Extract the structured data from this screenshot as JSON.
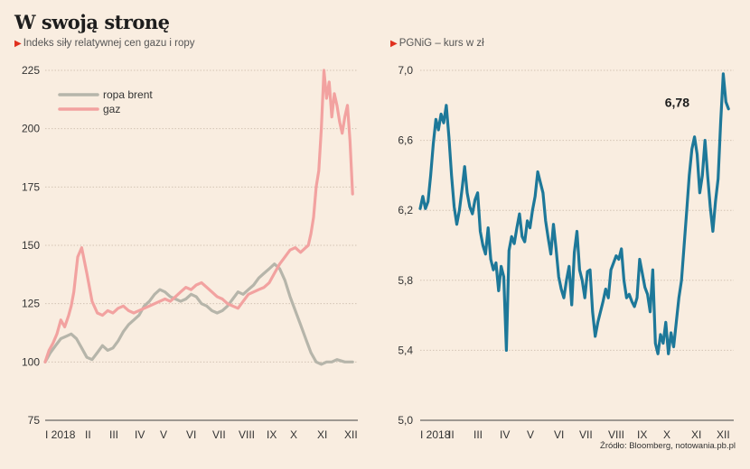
{
  "header": {
    "title": "W swoją stronę",
    "source": "Źródło: Bloomberg, notowania.pb.pl"
  },
  "colors": {
    "brent": "#b6b5aa",
    "gaz": "#f2a2a0",
    "pgnig": "#1d7899",
    "marker": "#e0301e"
  },
  "chart_data": [
    {
      "type": "line",
      "title": "Indeks siły relatywnej cen gazu i ropy",
      "xlabel": "",
      "ylabel": "",
      "x_ticks": [
        "I 2018",
        "II",
        "III",
        "IV",
        "V",
        "VI",
        "VII",
        "VIII",
        "IX",
        "X",
        "XI",
        "XII"
      ],
      "y_ticks": [
        "75",
        "100",
        "125",
        "150",
        "175",
        "200",
        "225"
      ],
      "ylim": [
        75,
        225
      ],
      "xlim": [
        0,
        12
      ],
      "grid": true,
      "legend": "top-left",
      "series": [
        {
          "name": "ropa brent",
          "x": [
            0.0,
            0.2,
            0.4,
            0.6,
            0.8,
            1.0,
            1.2,
            1.4,
            1.6,
            1.8,
            2.0,
            2.2,
            2.4,
            2.6,
            2.8,
            3.0,
            3.2,
            3.4,
            3.6,
            3.8,
            4.0,
            4.2,
            4.4,
            4.6,
            4.8,
            5.0,
            5.2,
            5.4,
            5.6,
            5.8,
            6.0,
            6.2,
            6.4,
            6.6,
            6.8,
            7.0,
            7.2,
            7.4,
            7.6,
            7.8,
            8.0,
            8.2,
            8.4,
            8.6,
            8.8,
            9.0,
            9.2,
            9.4,
            9.6,
            9.8,
            10.0,
            10.2,
            10.4,
            10.6,
            10.8,
            11.0,
            11.2,
            11.5,
            11.8
          ],
          "values": [
            100,
            104,
            107,
            110,
            111,
            112,
            110,
            106,
            102,
            101,
            104,
            107,
            105,
            106,
            109,
            113,
            116,
            118,
            120,
            124,
            126,
            129,
            131,
            130,
            128,
            127,
            126,
            127,
            129,
            128,
            125,
            124,
            122,
            121,
            122,
            124,
            127,
            130,
            129,
            131,
            133,
            136,
            138,
            140,
            142,
            140,
            135,
            128,
            122,
            116,
            110,
            104,
            100,
            99,
            100,
            100,
            101,
            100,
            100
          ]
        },
        {
          "name": "gaz",
          "x": [
            0.0,
            0.15,
            0.3,
            0.45,
            0.6,
            0.75,
            0.9,
            1.0,
            1.1,
            1.25,
            1.4,
            1.6,
            1.8,
            2.0,
            2.2,
            2.4,
            2.6,
            2.8,
            3.0,
            3.2,
            3.4,
            3.6,
            3.8,
            4.0,
            4.2,
            4.4,
            4.6,
            4.8,
            5.0,
            5.2,
            5.4,
            5.6,
            5.8,
            6.0,
            6.2,
            6.4,
            6.6,
            6.8,
            7.0,
            7.2,
            7.4,
            7.6,
            7.8,
            8.0,
            8.2,
            8.4,
            8.6,
            8.8,
            9.0,
            9.2,
            9.4,
            9.6,
            9.8,
            10.0,
            10.1,
            10.2,
            10.3,
            10.4,
            10.5,
            10.6,
            10.7,
            10.8,
            10.9,
            11.0,
            11.1,
            11.2,
            11.3,
            11.4,
            11.5,
            11.6,
            11.7,
            11.8
          ],
          "values": [
            100,
            105,
            108,
            112,
            118,
            115,
            120,
            124,
            130,
            145,
            149,
            138,
            126,
            121,
            120,
            122,
            121,
            123,
            124,
            122,
            121,
            122,
            123,
            124,
            125,
            126,
            127,
            126,
            128,
            130,
            132,
            131,
            133,
            134,
            132,
            130,
            128,
            127,
            125,
            124,
            123,
            126,
            129,
            130,
            131,
            132,
            134,
            138,
            142,
            145,
            148,
            149,
            147,
            149,
            150,
            155,
            162,
            175,
            182,
            200,
            225,
            213,
            220,
            205,
            215,
            210,
            203,
            198,
            205,
            210,
            195,
            172
          ]
        }
      ]
    },
    {
      "type": "line",
      "title": "PGNiG – kurs w zł",
      "xlabel": "",
      "ylabel": "",
      "x_ticks": [
        "I 2018",
        "II",
        "III",
        "IV",
        "V",
        "VI",
        "VII",
        "VIII",
        "IX",
        "X",
        "XI",
        "XII"
      ],
      "y_ticks": [
        "5,0",
        "5,4",
        "5,8",
        "6,2",
        "6,6",
        "7,0"
      ],
      "ylim": [
        5.0,
        7.0
      ],
      "xlim": [
        0,
        12
      ],
      "grid": true,
      "annotation": "6,78",
      "series": [
        {
          "name": "PGNiG",
          "x": [
            0.0,
            0.1,
            0.2,
            0.3,
            0.4,
            0.5,
            0.6,
            0.7,
            0.8,
            0.9,
            1.0,
            1.1,
            1.2,
            1.3,
            1.4,
            1.5,
            1.6,
            1.7,
            1.8,
            1.9,
            2.0,
            2.1,
            2.2,
            2.3,
            2.4,
            2.5,
            2.6,
            2.7,
            2.8,
            2.9,
            3.0,
            3.1,
            3.2,
            3.3,
            3.4,
            3.5,
            3.6,
            3.7,
            3.8,
            3.9,
            4.0,
            4.1,
            4.2,
            4.3,
            4.4,
            4.5,
            4.6,
            4.7,
            4.8,
            4.9,
            5.0,
            5.1,
            5.2,
            5.3,
            5.4,
            5.5,
            5.6,
            5.7,
            5.8,
            5.9,
            6.0,
            6.1,
            6.2,
            6.3,
            6.4,
            6.5,
            6.6,
            6.7,
            6.8,
            6.9,
            7.0,
            7.1,
            7.2,
            7.3,
            7.4,
            7.5,
            7.6,
            7.7,
            7.8,
            7.9,
            8.0,
            8.1,
            8.2,
            8.3,
            8.4,
            8.5,
            8.6,
            8.7,
            8.8,
            8.9,
            9.0,
            9.1,
            9.2,
            9.3,
            9.4,
            9.5,
            9.6,
            9.7,
            9.8,
            9.9,
            10.0,
            10.1,
            10.2,
            10.3,
            10.4,
            10.5,
            10.6,
            10.7,
            10.8,
            10.9,
            11.0,
            11.1,
            11.2,
            11.3,
            11.4,
            11.5,
            11.6,
            11.7,
            11.8
          ],
          "values": [
            6.21,
            6.28,
            6.21,
            6.25,
            6.4,
            6.58,
            6.72,
            6.66,
            6.75,
            6.7,
            6.8,
            6.62,
            6.4,
            6.22,
            6.12,
            6.2,
            6.32,
            6.45,
            6.3,
            6.22,
            6.18,
            6.26,
            6.3,
            6.08,
            6.0,
            5.95,
            6.1,
            5.92,
            5.86,
            5.9,
            5.74,
            5.88,
            5.82,
            5.4,
            5.97,
            6.05,
            6.01,
            6.1,
            6.18,
            6.05,
            6.02,
            6.14,
            6.1,
            6.2,
            6.28,
            6.42,
            6.36,
            6.3,
            6.14,
            6.04,
            5.95,
            6.12,
            5.98,
            5.82,
            5.75,
            5.7,
            5.8,
            5.88,
            5.66,
            5.96,
            6.08,
            5.86,
            5.8,
            5.7,
            5.85,
            5.86,
            5.62,
            5.48,
            5.56,
            5.62,
            5.68,
            5.75,
            5.7,
            5.86,
            5.9,
            5.94,
            5.92,
            5.98,
            5.8,
            5.7,
            5.72,
            5.68,
            5.65,
            5.7,
            5.92,
            5.84,
            5.76,
            5.72,
            5.62,
            5.86,
            5.44,
            5.38,
            5.49,
            5.44,
            5.56,
            5.38,
            5.5,
            5.42,
            5.56,
            5.7,
            5.8,
            6.0,
            6.2,
            6.4,
            6.55,
            6.62,
            6.52,
            6.3,
            6.4,
            6.6,
            6.4,
            6.22,
            6.08,
            6.25,
            6.38,
            6.7,
            6.98,
            6.82,
            6.78
          ]
        }
      ]
    }
  ]
}
